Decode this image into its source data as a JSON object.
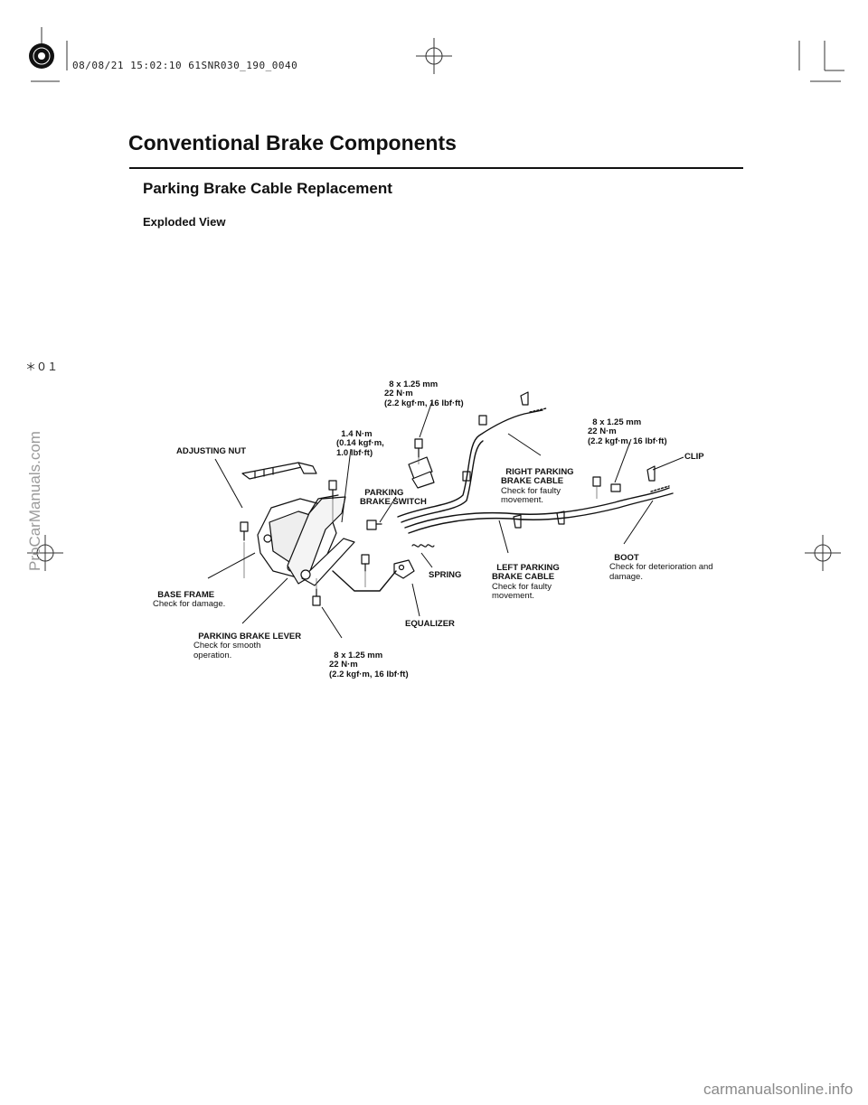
{
  "header_stamp": "08/08/21 15:02:10 61SNR030_190_0040",
  "title": "Conventional Brake Components",
  "section": "Parking Brake Cable Replacement",
  "subsection": "Exploded View",
  "page_mark": "＊０１",
  "side_watermark": "ProCarManuals.com",
  "footer": "carmanualsonline.info",
  "labels": {
    "adjusting_nut": "ADJUSTING NUT",
    "bolt_top_1": "8 x 1.25 mm",
    "bolt_top_2": "22 N·m",
    "bolt_top_3": "(2.2 kgf·m, 16 lbf·ft)",
    "switch_torque_1": "1.4 N·m",
    "switch_torque_2": "(0.14 kgf·m,",
    "switch_torque_3": "1.0 lbf·ft)",
    "switch_1": "PARKING",
    "switch_2": "BRAKE SWITCH",
    "right_cable_1": "RIGHT PARKING",
    "right_cable_2": "BRAKE CABLE",
    "right_cable_3": "Check for faulty",
    "right_cable_4": "movement.",
    "bolt_right_1": "8 x 1.25 mm",
    "bolt_right_2": "22 N·m",
    "bolt_right_3": "(2.2 kgf·m, 16 lbf·ft)",
    "clip": "CLIP",
    "base_frame_1": "BASE FRAME",
    "base_frame_2": "Check for damage.",
    "spring": "SPRING",
    "left_cable_1": "LEFT PARKING",
    "left_cable_2": "BRAKE CABLE",
    "left_cable_3": "Check for faulty",
    "left_cable_4": "movement.",
    "boot_1": "BOOT",
    "boot_2": "Check for deterioration and",
    "boot_3": "damage.",
    "lever_1": "PARKING BRAKE LEVER",
    "lever_2": "Check for smooth",
    "lever_3": "operation.",
    "equalizer": "EQUALIZER",
    "bolt_bottom_1": "8 x 1.25 mm",
    "bolt_bottom_2": "22 N·m",
    "bolt_bottom_3": "(2.2 kgf·m, 16 lbf·ft)"
  }
}
